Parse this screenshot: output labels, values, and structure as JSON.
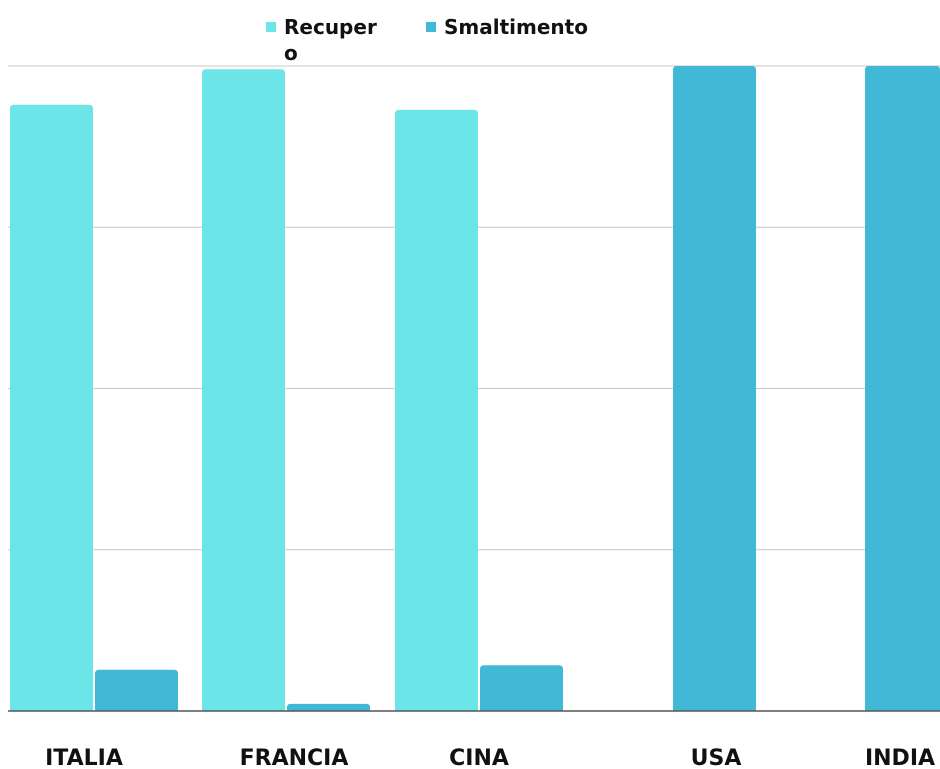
{
  "chart_data": {
    "type": "bar",
    "categories": [
      "ITALIA",
      "FRANCIA",
      "CINA",
      "USA",
      "INDIA"
    ],
    "series": [
      {
        "name": "Recupero",
        "color": "#6ce5e8",
        "values": [
          94,
          99.5,
          93.2,
          0,
          0
        ]
      },
      {
        "name": "Smaltimento",
        "color": "#41b8d5",
        "values": [
          6.4,
          1.1,
          7.1,
          100,
          100
        ]
      }
    ],
    "ylim": [
      0,
      100
    ],
    "grid": true,
    "legend": "top-center",
    "title": "",
    "xlabel": "",
    "ylabel": ""
  }
}
